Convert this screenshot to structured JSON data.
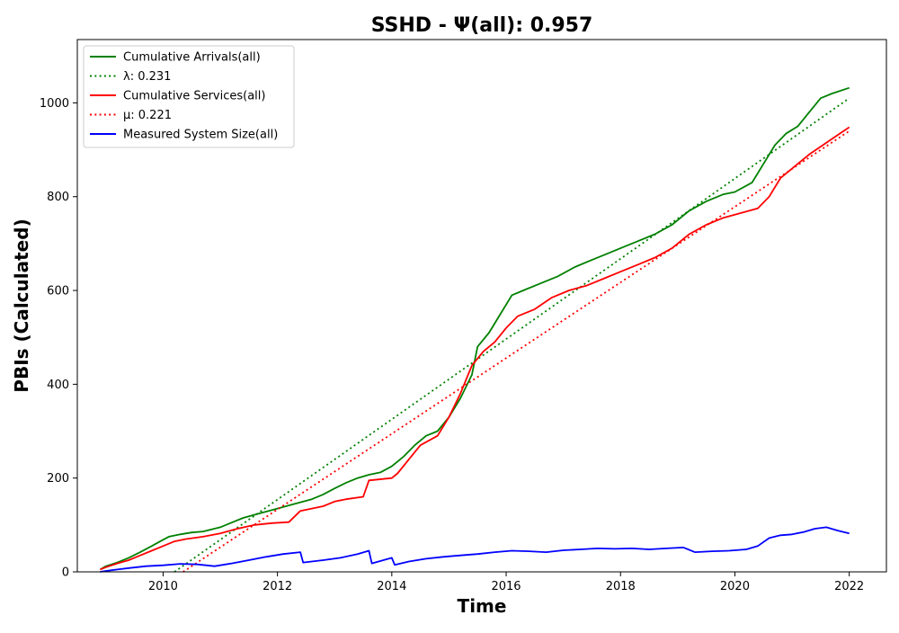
{
  "chart_data": {
    "type": "line",
    "title": "SSHD -  Ψ(all): 0.957",
    "xlabel": "Time",
    "ylabel": "PBIs (Calculated)",
    "xlim": [
      2008.5,
      2022.65
    ],
    "ylim": [
      0,
      1135
    ],
    "x_ticks": [
      2010,
      2012,
      2014,
      2016,
      2018,
      2020,
      2022
    ],
    "x_tick_labels": [
      "2010",
      "2012",
      "2014",
      "2016",
      "2018",
      "2020",
      "2022"
    ],
    "y_ticks": [
      0,
      200,
      400,
      600,
      800,
      1000
    ],
    "y_tick_labels": [
      "0",
      "200",
      "400",
      "600",
      "800",
      "1000"
    ],
    "grid": false,
    "legend_position": "top-left",
    "series": [
      {
        "name": "Cumulative Arrivals(all)",
        "color": "#008000",
        "style": "solid",
        "x": [
          2008.9,
          2009.0,
          2009.2,
          2009.4,
          2009.6,
          2009.8,
          2009.95,
          2010.1,
          2010.3,
          2010.5,
          2010.7,
          2011.0,
          2011.2,
          2011.4,
          2011.7,
          2012.0,
          2012.3,
          2012.6,
          2012.8,
          2013.0,
          2013.2,
          2013.4,
          2013.6,
          2013.8,
          2014.0,
          2014.2,
          2014.4,
          2014.6,
          2014.8,
          2015.0,
          2015.2,
          2015.4,
          2015.5,
          2015.7,
          2015.9,
          2016.1,
          2016.3,
          2016.6,
          2016.9,
          2017.2,
          2017.5,
          2017.8,
          2018.0,
          2018.3,
          2018.6,
          2018.9,
          2019.2,
          2019.5,
          2019.8,
          2020.0,
          2020.3,
          2020.5,
          2020.7,
          2020.9,
          2021.1,
          2021.3,
          2021.5,
          2021.7,
          2022.0
        ],
        "values": [
          5,
          12,
          20,
          30,
          42,
          55,
          65,
          75,
          80,
          84,
          86,
          95,
          105,
          115,
          125,
          135,
          145,
          155,
          165,
          178,
          190,
          200,
          207,
          212,
          225,
          245,
          270,
          290,
          300,
          330,
          370,
          420,
          480,
          510,
          550,
          590,
          600,
          615,
          630,
          650,
          665,
          680,
          690,
          705,
          720,
          740,
          770,
          790,
          805,
          810,
          830,
          870,
          910,
          935,
          950,
          980,
          1010,
          1020,
          1032
        ]
      },
      {
        "name": "λ: 0.231",
        "color": "#008000",
        "style": "dotted",
        "x": [
          2010.2,
          2022.0
        ],
        "values": [
          0,
          1010
        ]
      },
      {
        "name": "Cumulative Services(all)",
        "color": "#ff0000",
        "style": "solid",
        "x": [
          2008.9,
          2009.0,
          2009.2,
          2009.4,
          2009.6,
          2009.8,
          2010.0,
          2010.2,
          2010.4,
          2010.7,
          2011.0,
          2011.3,
          2011.6,
          2011.9,
          2012.2,
          2012.4,
          2012.6,
          2012.8,
          2013.0,
          2013.2,
          2013.5,
          2013.6,
          2014.0,
          2014.1,
          2014.3,
          2014.5,
          2014.8,
          2015.0,
          2015.2,
          2015.4,
          2015.6,
          2015.8,
          2016.0,
          2016.2,
          2016.5,
          2016.8,
          2017.1,
          2017.4,
          2017.7,
          2018.0,
          2018.3,
          2018.6,
          2018.9,
          2019.2,
          2019.5,
          2019.8,
          2020.1,
          2020.4,
          2020.6,
          2020.8,
          2021.0,
          2021.3,
          2021.6,
          2021.9,
          2022.0
        ],
        "values": [
          5,
          10,
          18,
          25,
          35,
          45,
          55,
          65,
          70,
          75,
          82,
          92,
          100,
          104,
          106,
          130,
          135,
          140,
          150,
          155,
          160,
          195,
          200,
          210,
          240,
          270,
          290,
          330,
          380,
          440,
          470,
          490,
          520,
          545,
          560,
          585,
          600,
          610,
          625,
          640,
          655,
          670,
          690,
          720,
          740,
          755,
          765,
          775,
          800,
          840,
          860,
          890,
          915,
          940,
          948
        ]
      },
      {
        "name": "μ: 0.221",
        "color": "#ff0000",
        "style": "dotted",
        "x": [
          2010.35,
          2022.0
        ],
        "values": [
          0,
          940
        ]
      },
      {
        "name": "Measured System Size(all)",
        "color": "#0000ff",
        "style": "solid",
        "x": [
          2008.9,
          2009.0,
          2009.2,
          2009.4,
          2009.7,
          2010.0,
          2010.3,
          2010.6,
          2010.9,
          2011.2,
          2011.5,
          2011.8,
          2012.1,
          2012.4,
          2012.45,
          2012.8,
          2013.1,
          2013.4,
          2013.6,
          2013.65,
          2014.0,
          2014.05,
          2014.3,
          2014.6,
          2014.9,
          2015.2,
          2015.5,
          2015.8,
          2016.1,
          2016.4,
          2016.7,
          2017.0,
          2017.3,
          2017.6,
          2017.9,
          2018.2,
          2018.5,
          2018.8,
          2019.1,
          2019.3,
          2019.6,
          2019.9,
          2020.2,
          2020.4,
          2020.6,
          2020.8,
          2021.0,
          2021.2,
          2021.4,
          2021.6,
          2021.8,
          2022.0
        ],
        "values": [
          0,
          2,
          5,
          8,
          12,
          14,
          17,
          16,
          12,
          18,
          25,
          32,
          38,
          42,
          20,
          25,
          30,
          38,
          45,
          18,
          30,
          15,
          22,
          28,
          32,
          35,
          38,
          42,
          45,
          44,
          42,
          46,
          48,
          50,
          49,
          50,
          48,
          50,
          52,
          42,
          44,
          45,
          48,
          55,
          72,
          78,
          80,
          85,
          92,
          95,
          88,
          82
        ]
      }
    ]
  }
}
